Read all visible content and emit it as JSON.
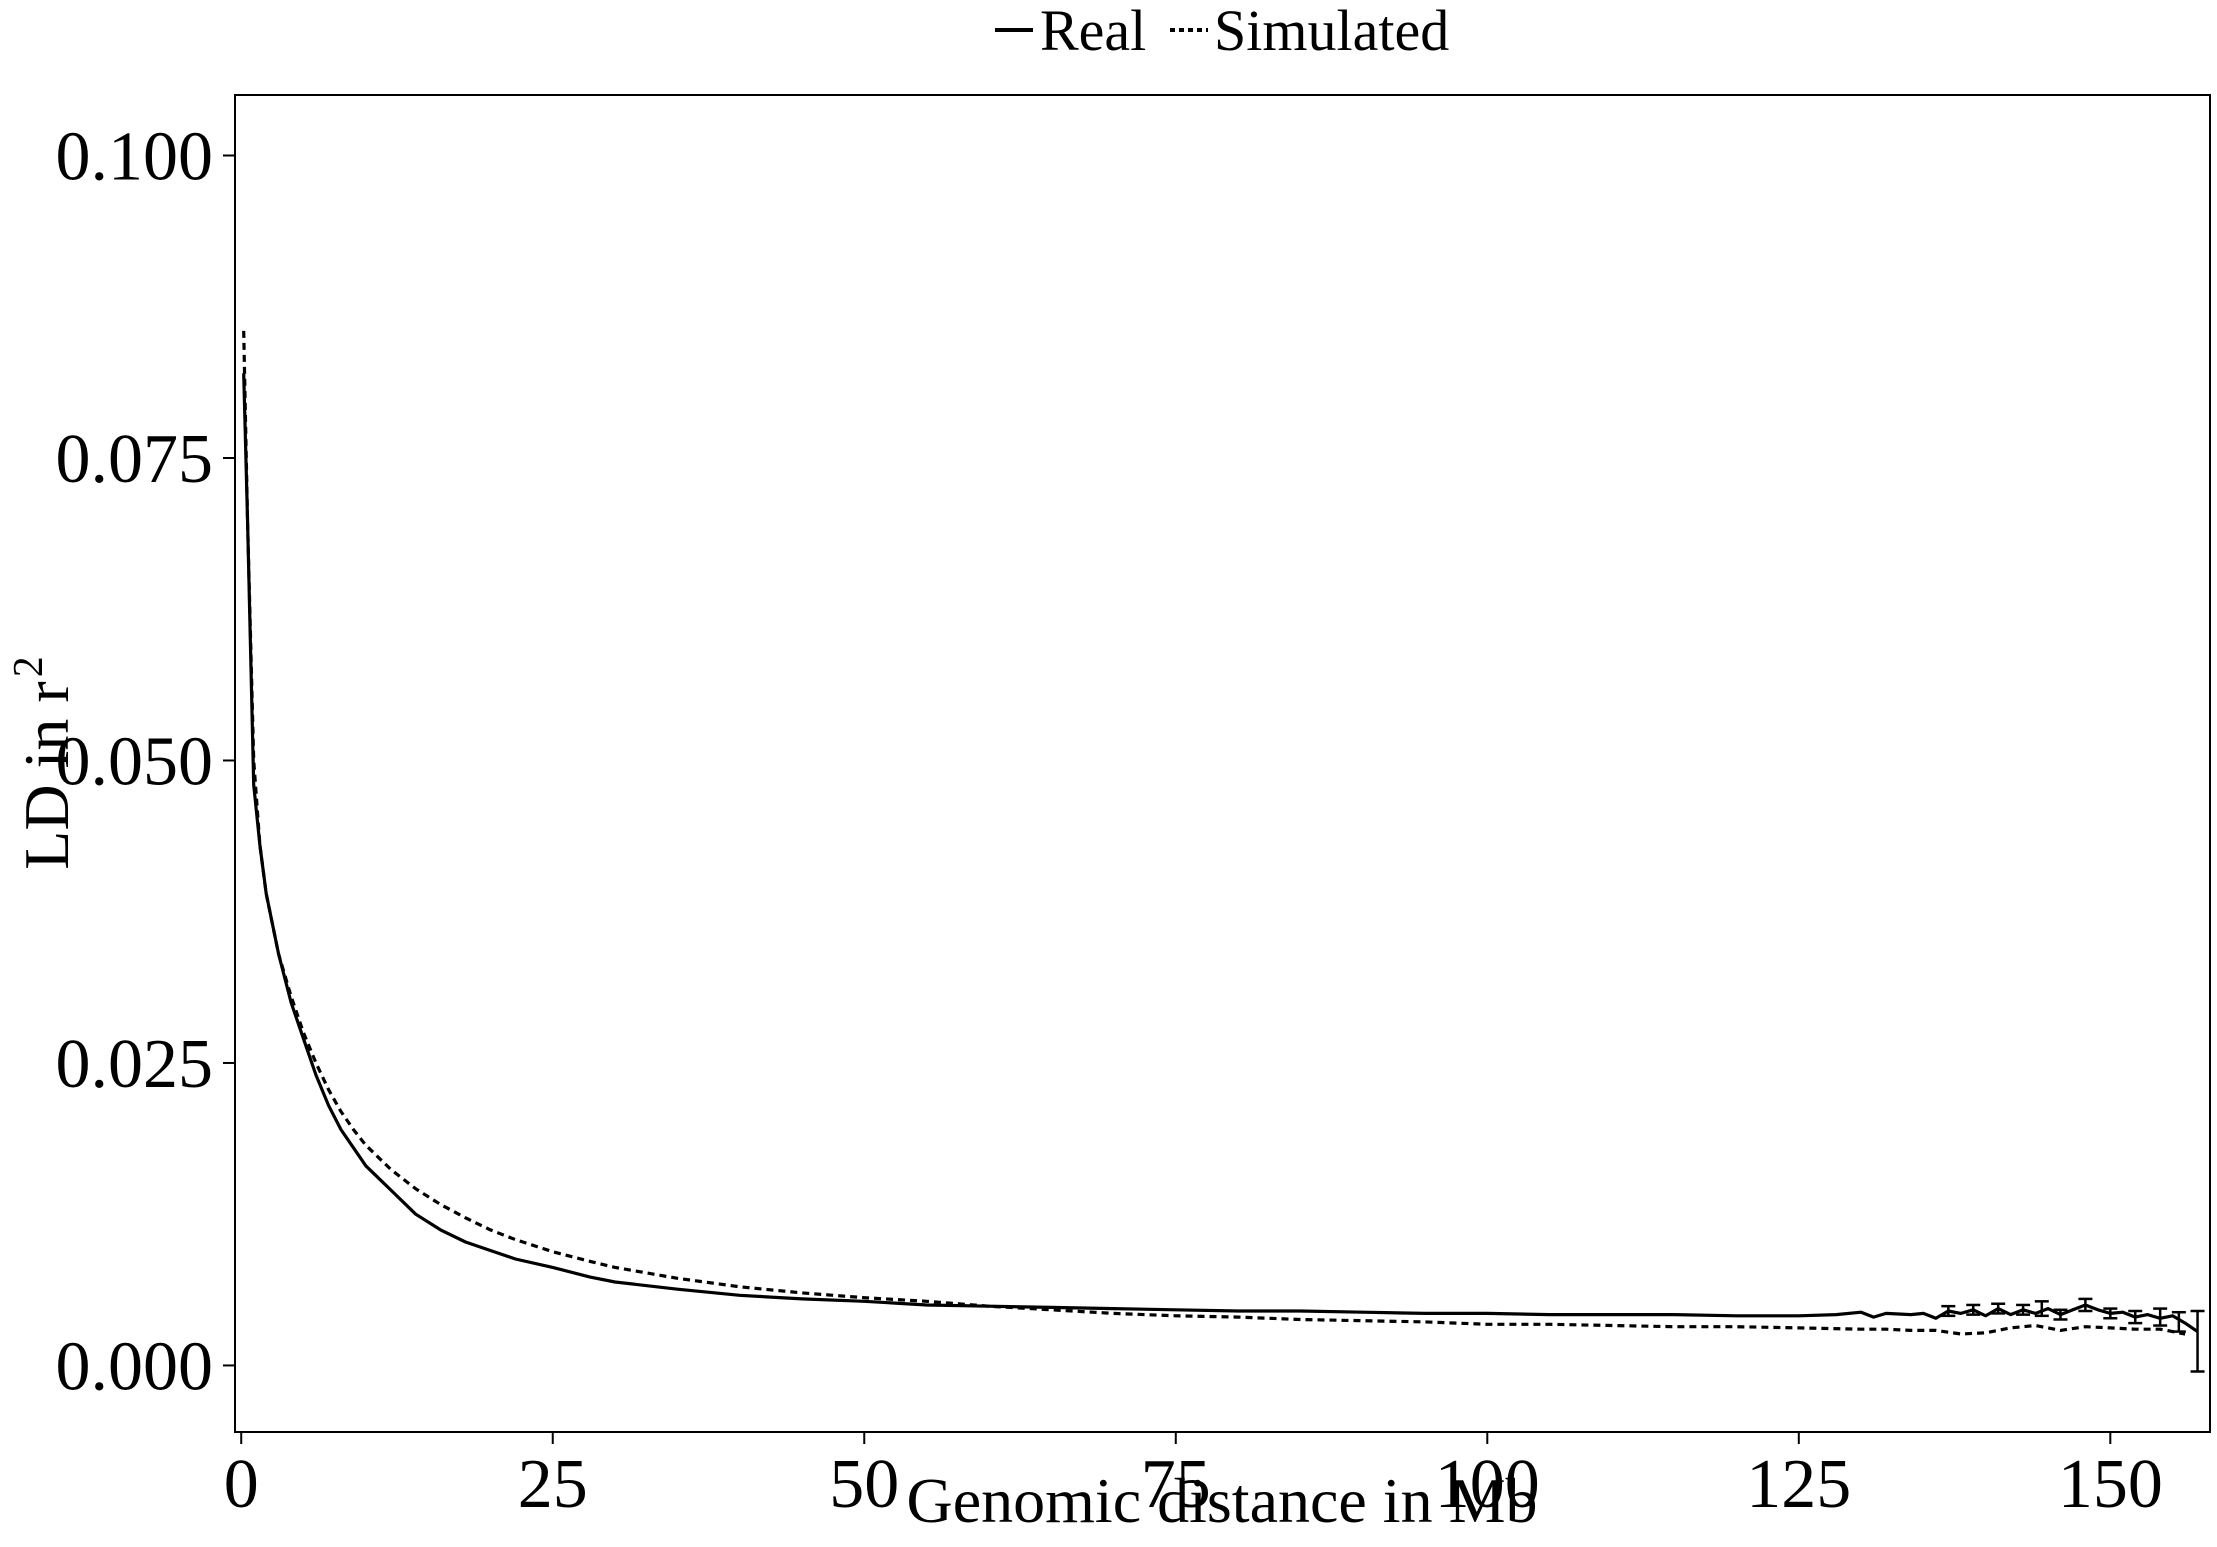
{
  "chart_data": {
    "type": "line",
    "xlabel": "Genomic distance in Mb",
    "ylabel": "LD in r",
    "ylabel_superscript": "2",
    "xlim": [
      -0.5,
      158
    ],
    "ylim": [
      -0.0055,
      0.105
    ],
    "xticks": [
      {
        "value": 0,
        "label": "0"
      },
      {
        "value": 25,
        "label": "25"
      },
      {
        "value": 50,
        "label": "50"
      },
      {
        "value": 75,
        "label": "75"
      },
      {
        "value": 100,
        "label": "100"
      },
      {
        "value": 125,
        "label": "125"
      },
      {
        "value": 150,
        "label": "150"
      }
    ],
    "yticks": [
      {
        "value": 0.0,
        "label": "0.000"
      },
      {
        "value": 0.025,
        "label": "0.025"
      },
      {
        "value": 0.05,
        "label": "0.050"
      },
      {
        "value": 0.075,
        "label": "0.075"
      },
      {
        "value": 0.1,
        "label": "0.100"
      }
    ],
    "grid": false,
    "legend_position": "top",
    "series": [
      {
        "name": "Real",
        "style": "solid",
        "color": "#000000",
        "x": [
          0.2,
          0.5,
          1,
          1.5,
          2,
          3,
          4,
          5,
          6,
          7,
          8,
          9,
          10,
          12,
          14,
          16,
          18,
          20,
          22,
          25,
          28,
          30,
          35,
          40,
          45,
          50,
          55,
          60,
          65,
          70,
          75,
          80,
          85,
          90,
          95,
          100,
          105,
          110,
          115,
          120,
          125,
          128,
          130,
          131,
          132,
          134,
          135,
          136,
          137,
          138,
          139,
          140,
          141,
          142,
          143,
          144,
          145,
          146,
          147,
          148,
          149,
          150,
          151,
          152,
          153,
          154,
          155,
          156,
          157
        ],
        "y": [
          0.082,
          0.07,
          0.048,
          0.043,
          0.039,
          0.034,
          0.03,
          0.027,
          0.024,
          0.0215,
          0.0195,
          0.018,
          0.0165,
          0.0145,
          0.0125,
          0.0112,
          0.0102,
          0.0095,
          0.0088,
          0.0081,
          0.0073,
          0.0069,
          0.0063,
          0.0058,
          0.0055,
          0.0053,
          0.005,
          0.0049,
          0.0048,
          0.0047,
          0.0046,
          0.0045,
          0.0045,
          0.0044,
          0.0043,
          0.0043,
          0.0042,
          0.0042,
          0.0042,
          0.0041,
          0.0041,
          0.0042,
          0.0044,
          0.004,
          0.0043,
          0.0042,
          0.0043,
          0.0039,
          0.0045,
          0.0043,
          0.0046,
          0.0041,
          0.0047,
          0.0042,
          0.0046,
          0.0043,
          0.0047,
          0.0042,
          0.0046,
          0.005,
          0.0046,
          0.0043,
          0.0044,
          0.004,
          0.0042,
          0.0039,
          0.0041,
          0.0035,
          0.0028
        ],
        "error_bars": [
          {
            "x": 137,
            "low": 0.0041,
            "high": 0.0049
          },
          {
            "x": 139,
            "low": 0.0042,
            "high": 0.005
          },
          {
            "x": 141,
            "low": 0.0043,
            "high": 0.0051
          },
          {
            "x": 143,
            "low": 0.0042,
            "high": 0.005
          },
          {
            "x": 144.5,
            "low": 0.0041,
            "high": 0.0053
          },
          {
            "x": 146,
            "low": 0.0038,
            "high": 0.0046
          },
          {
            "x": 148,
            "low": 0.0045,
            "high": 0.0055
          },
          {
            "x": 150,
            "low": 0.0039,
            "high": 0.0047
          },
          {
            "x": 152,
            "low": 0.0035,
            "high": 0.0045
          },
          {
            "x": 154,
            "low": 0.0033,
            "high": 0.0047
          },
          {
            "x": 155.5,
            "low": 0.0028,
            "high": 0.0044
          },
          {
            "x": 157,
            "low": -0.0005,
            "high": 0.0045
          }
        ]
      },
      {
        "name": "Simulated",
        "style": "dotted",
        "color": "#000000",
        "x": [
          0.2,
          0.5,
          1,
          1.5,
          2,
          3,
          4,
          5,
          6,
          7,
          8,
          9,
          10,
          12,
          14,
          16,
          18,
          20,
          22,
          25,
          28,
          30,
          35,
          40,
          45,
          50,
          55,
          60,
          65,
          70,
          75,
          80,
          85,
          90,
          95,
          100,
          105,
          110,
          115,
          120,
          125,
          130,
          132,
          134,
          136,
          138,
          140,
          142,
          144,
          146,
          148,
          150,
          152,
          154,
          155,
          156
        ],
        "y": [
          0.0855,
          0.07,
          0.05,
          0.043,
          0.039,
          0.034,
          0.0305,
          0.0275,
          0.025,
          0.0228,
          0.021,
          0.0195,
          0.0182,
          0.0162,
          0.0146,
          0.0133,
          0.0122,
          0.0112,
          0.0104,
          0.0094,
          0.0086,
          0.0081,
          0.0072,
          0.0065,
          0.006,
          0.0056,
          0.0053,
          0.0049,
          0.0046,
          0.0043,
          0.0041,
          0.004,
          0.0038,
          0.0037,
          0.0036,
          0.0034,
          0.0034,
          0.0033,
          0.0032,
          0.0032,
          0.0031,
          0.003,
          0.003,
          0.0029,
          0.0029,
          0.0026,
          0.0027,
          0.0031,
          0.0033,
          0.0029,
          0.0032,
          0.0031,
          0.003,
          0.003,
          0.0028,
          0.0026
        ]
      }
    ]
  }
}
